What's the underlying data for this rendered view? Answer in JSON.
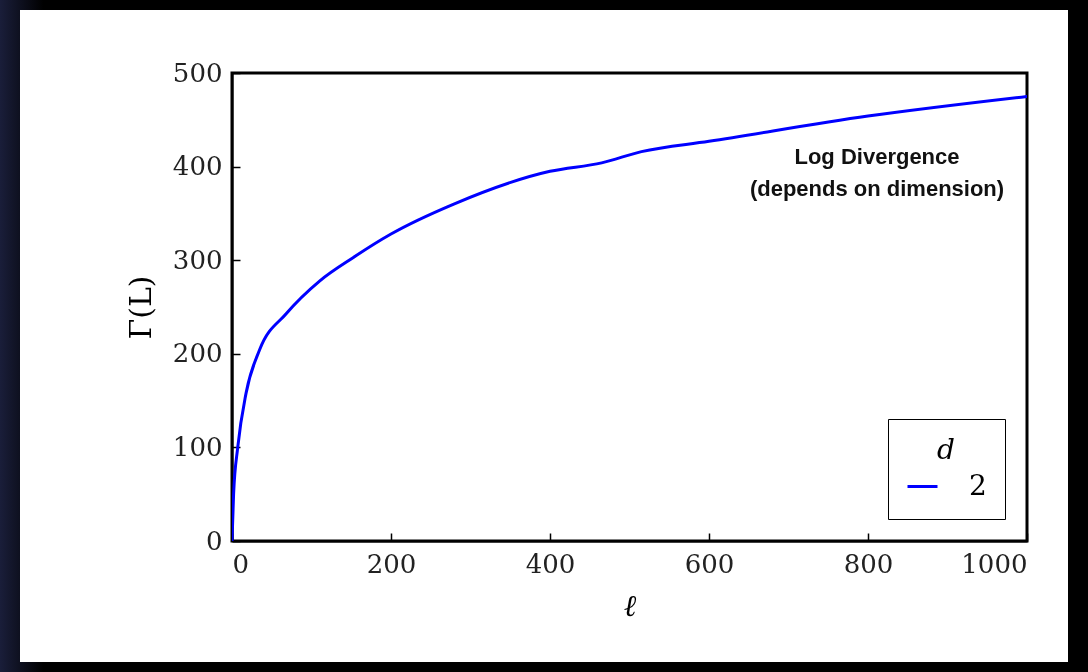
{
  "chart_data": {
    "type": "line",
    "xlabel": "ℓ",
    "ylabel": "Γ(L)",
    "legend_title": "d",
    "legend": "bottom right",
    "x": [
      0,
      2,
      7.2,
      17.7,
      34.6,
      68.4,
      110.5,
      152.7,
      200,
      279,
      400,
      465,
      515,
      600,
      800,
      1000
    ],
    "series": [
      {
        "name": "2",
        "color": "#0000ff",
        "values": [
          0,
          50,
          100,
          158,
          204,
          243,
          278,
          303,
          328,
          360,
          395,
          404,
          416,
          427,
          454,
          475
        ]
      }
    ],
    "xlim": [
      0,
      1000
    ],
    "xticks": [
      0,
      200,
      400,
      600,
      800,
      1000
    ],
    "ylim": [
      0,
      500
    ],
    "yticks": [
      0,
      100,
      200,
      300,
      400,
      500
    ],
    "annotations": [
      "Log Divergence\n(depends on dimension)"
    ]
  }
}
